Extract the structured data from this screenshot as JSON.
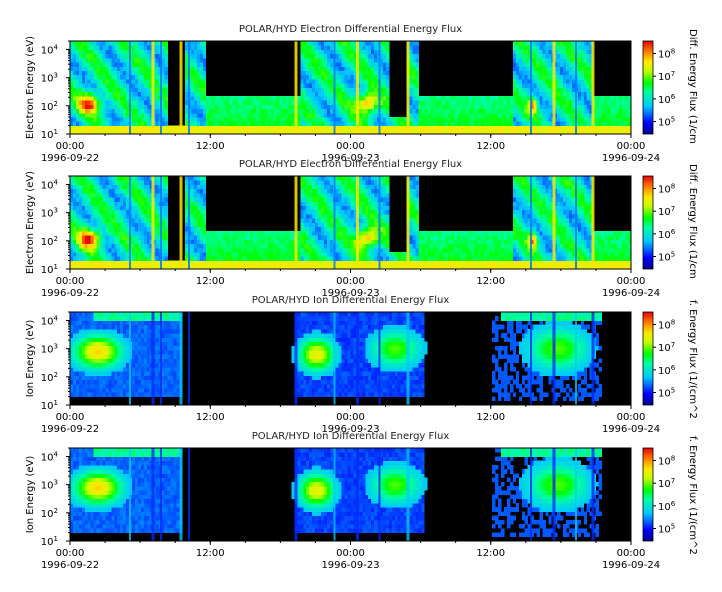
{
  "chart_data": [
    {
      "type": "heatmap",
      "title": "POLAR/HYD  Electron Differential Energy Flux",
      "ylabel": "Electron Energy (eV)",
      "colorbar_label": "Diff. Energy Flux (1/cm",
      "x_ticks": [
        "00:00",
        "12:00",
        "00:00",
        "12:00",
        "00:00"
      ],
      "x_dates": [
        "1996-09-22",
        "",
        "1996-09-23",
        "",
        "1996-09-24"
      ],
      "xlim": [
        "1996-09-22 00:00",
        "1996-09-24 00:00"
      ],
      "y_scale": "log",
      "ylim": [
        10,
        20000
      ],
      "y_ticks": [
        {
          "base": "10",
          "exp": "1"
        },
        {
          "base": "10",
          "exp": "2"
        },
        {
          "base": "10",
          "exp": "3"
        },
        {
          "base": "10",
          "exp": "4"
        }
      ],
      "colorbar_scale": "log",
      "colorbar_ticks": [
        {
          "base": "10",
          "exp": "5"
        },
        {
          "base": "10",
          "exp": "6"
        },
        {
          "base": "10",
          "exp": "7"
        },
        {
          "base": "10",
          "exp": "8"
        }
      ],
      "colormap": "rainbow (black = no data)"
    },
    {
      "type": "heatmap",
      "title": "POLAR/HYD  Electron Differential Energy Flux",
      "ylabel": "Electron Energy (eV)",
      "colorbar_label": "Diff. Energy Flux (1/cm",
      "x_ticks": [
        "00:00",
        "12:00",
        "00:00",
        "12:00",
        "00:00"
      ],
      "x_dates": [
        "1996-09-22",
        "",
        "1996-09-23",
        "",
        "1996-09-24"
      ],
      "xlim": [
        "1996-09-22 00:00",
        "1996-09-24 00:00"
      ],
      "y_scale": "log",
      "ylim": [
        10,
        20000
      ],
      "y_ticks": [
        {
          "base": "10",
          "exp": "1"
        },
        {
          "base": "10",
          "exp": "2"
        },
        {
          "base": "10",
          "exp": "3"
        },
        {
          "base": "10",
          "exp": "4"
        }
      ],
      "colorbar_scale": "log",
      "colorbar_ticks": [
        {
          "base": "10",
          "exp": "5"
        },
        {
          "base": "10",
          "exp": "6"
        },
        {
          "base": "10",
          "exp": "7"
        },
        {
          "base": "10",
          "exp": "8"
        }
      ],
      "colormap": "rainbow (black = no data)"
    },
    {
      "type": "heatmap",
      "title": "POLAR/HYD  Ion Differential Energy Flux",
      "ylabel": "Ion Energy (eV)",
      "colorbar_label": "f. Energy Flux (1/(cm^2",
      "x_ticks": [
        "00:00",
        "12:00",
        "00:00",
        "12:00",
        "00:00"
      ],
      "x_dates": [
        "1996-09-22",
        "",
        "1996-09-23",
        "",
        "1996-09-24"
      ],
      "xlim": [
        "1996-09-22 00:00",
        "1996-09-24 00:00"
      ],
      "y_scale": "log",
      "ylim": [
        10,
        20000
      ],
      "y_ticks": [
        {
          "base": "10",
          "exp": "1"
        },
        {
          "base": "10",
          "exp": "2"
        },
        {
          "base": "10",
          "exp": "3"
        },
        {
          "base": "10",
          "exp": "4"
        }
      ],
      "colorbar_scale": "log",
      "colorbar_ticks": [
        {
          "base": "10",
          "exp": "5"
        },
        {
          "base": "10",
          "exp": "6"
        },
        {
          "base": "10",
          "exp": "7"
        },
        {
          "base": "10",
          "exp": "8"
        }
      ],
      "colormap": "rainbow (black = no data)"
    },
    {
      "type": "heatmap",
      "title": "POLAR/HYD  Ion Differential Energy Flux",
      "ylabel": "Ion Energy (eV)",
      "colorbar_label": "f. Energy Flux (1/(cm^2",
      "x_ticks": [
        "00:00",
        "12:00",
        "00:00",
        "12:00",
        "00:00"
      ],
      "x_dates": [
        "1996-09-22",
        "",
        "1996-09-23",
        "",
        "1996-09-24"
      ],
      "xlim": [
        "1996-09-22 00:00",
        "1996-09-24 00:00"
      ],
      "y_scale": "log",
      "ylim": [
        10,
        20000
      ],
      "y_ticks": [
        {
          "base": "10",
          "exp": "1"
        },
        {
          "base": "10",
          "exp": "2"
        },
        {
          "base": "10",
          "exp": "3"
        },
        {
          "base": "10",
          "exp": "4"
        }
      ],
      "colorbar_scale": "log",
      "colorbar_ticks": [
        {
          "base": "10",
          "exp": "5"
        },
        {
          "base": "10",
          "exp": "6"
        },
        {
          "base": "10",
          "exp": "7"
        },
        {
          "base": "10",
          "exp": "8"
        }
      ],
      "colormap": "rainbow (black = no data)"
    }
  ]
}
